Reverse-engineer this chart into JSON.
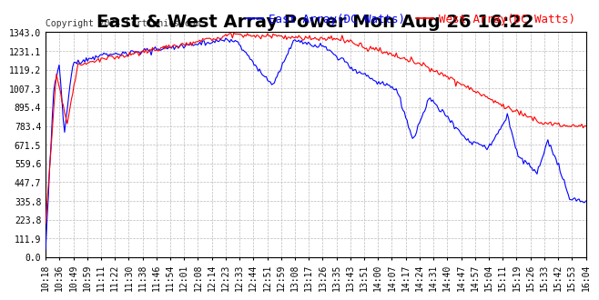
{
  "title": "East & West Array Power Mon Aug 26 16:22",
  "copyright": "Copyright 2024 Curtronics.com",
  "east_label": "East Array(DC Watts)",
  "west_label": "West Array(DC Watts)",
  "east_color": "#0000ff",
  "west_color": "#ff0000",
  "background_color": "#ffffff",
  "grid_color": "#bbbbbb",
  "ylim": [
    0.0,
    1343.0
  ],
  "yticks": [
    0.0,
    111.9,
    223.8,
    335.8,
    447.7,
    559.6,
    671.5,
    783.4,
    895.4,
    1007.3,
    1119.2,
    1231.1,
    1343.0
  ],
  "xtick_labels": [
    "10:18",
    "10:36",
    "10:49",
    "10:59",
    "11:11",
    "11:22",
    "11:30",
    "11:38",
    "11:46",
    "11:54",
    "12:01",
    "12:08",
    "12:14",
    "12:23",
    "12:33",
    "12:44",
    "12:51",
    "12:59",
    "13:08",
    "13:17",
    "13:26",
    "13:35",
    "13:43",
    "13:51",
    "14:00",
    "14:07",
    "14:17",
    "14:24",
    "14:31",
    "14:40",
    "14:47",
    "14:57",
    "15:04",
    "15:11",
    "15:19",
    "15:26",
    "15:33",
    "15:42",
    "15:53",
    "16:04"
  ],
  "title_fontsize": 14,
  "copyright_fontsize": 7,
  "legend_fontsize": 9,
  "tick_fontsize": 7
}
